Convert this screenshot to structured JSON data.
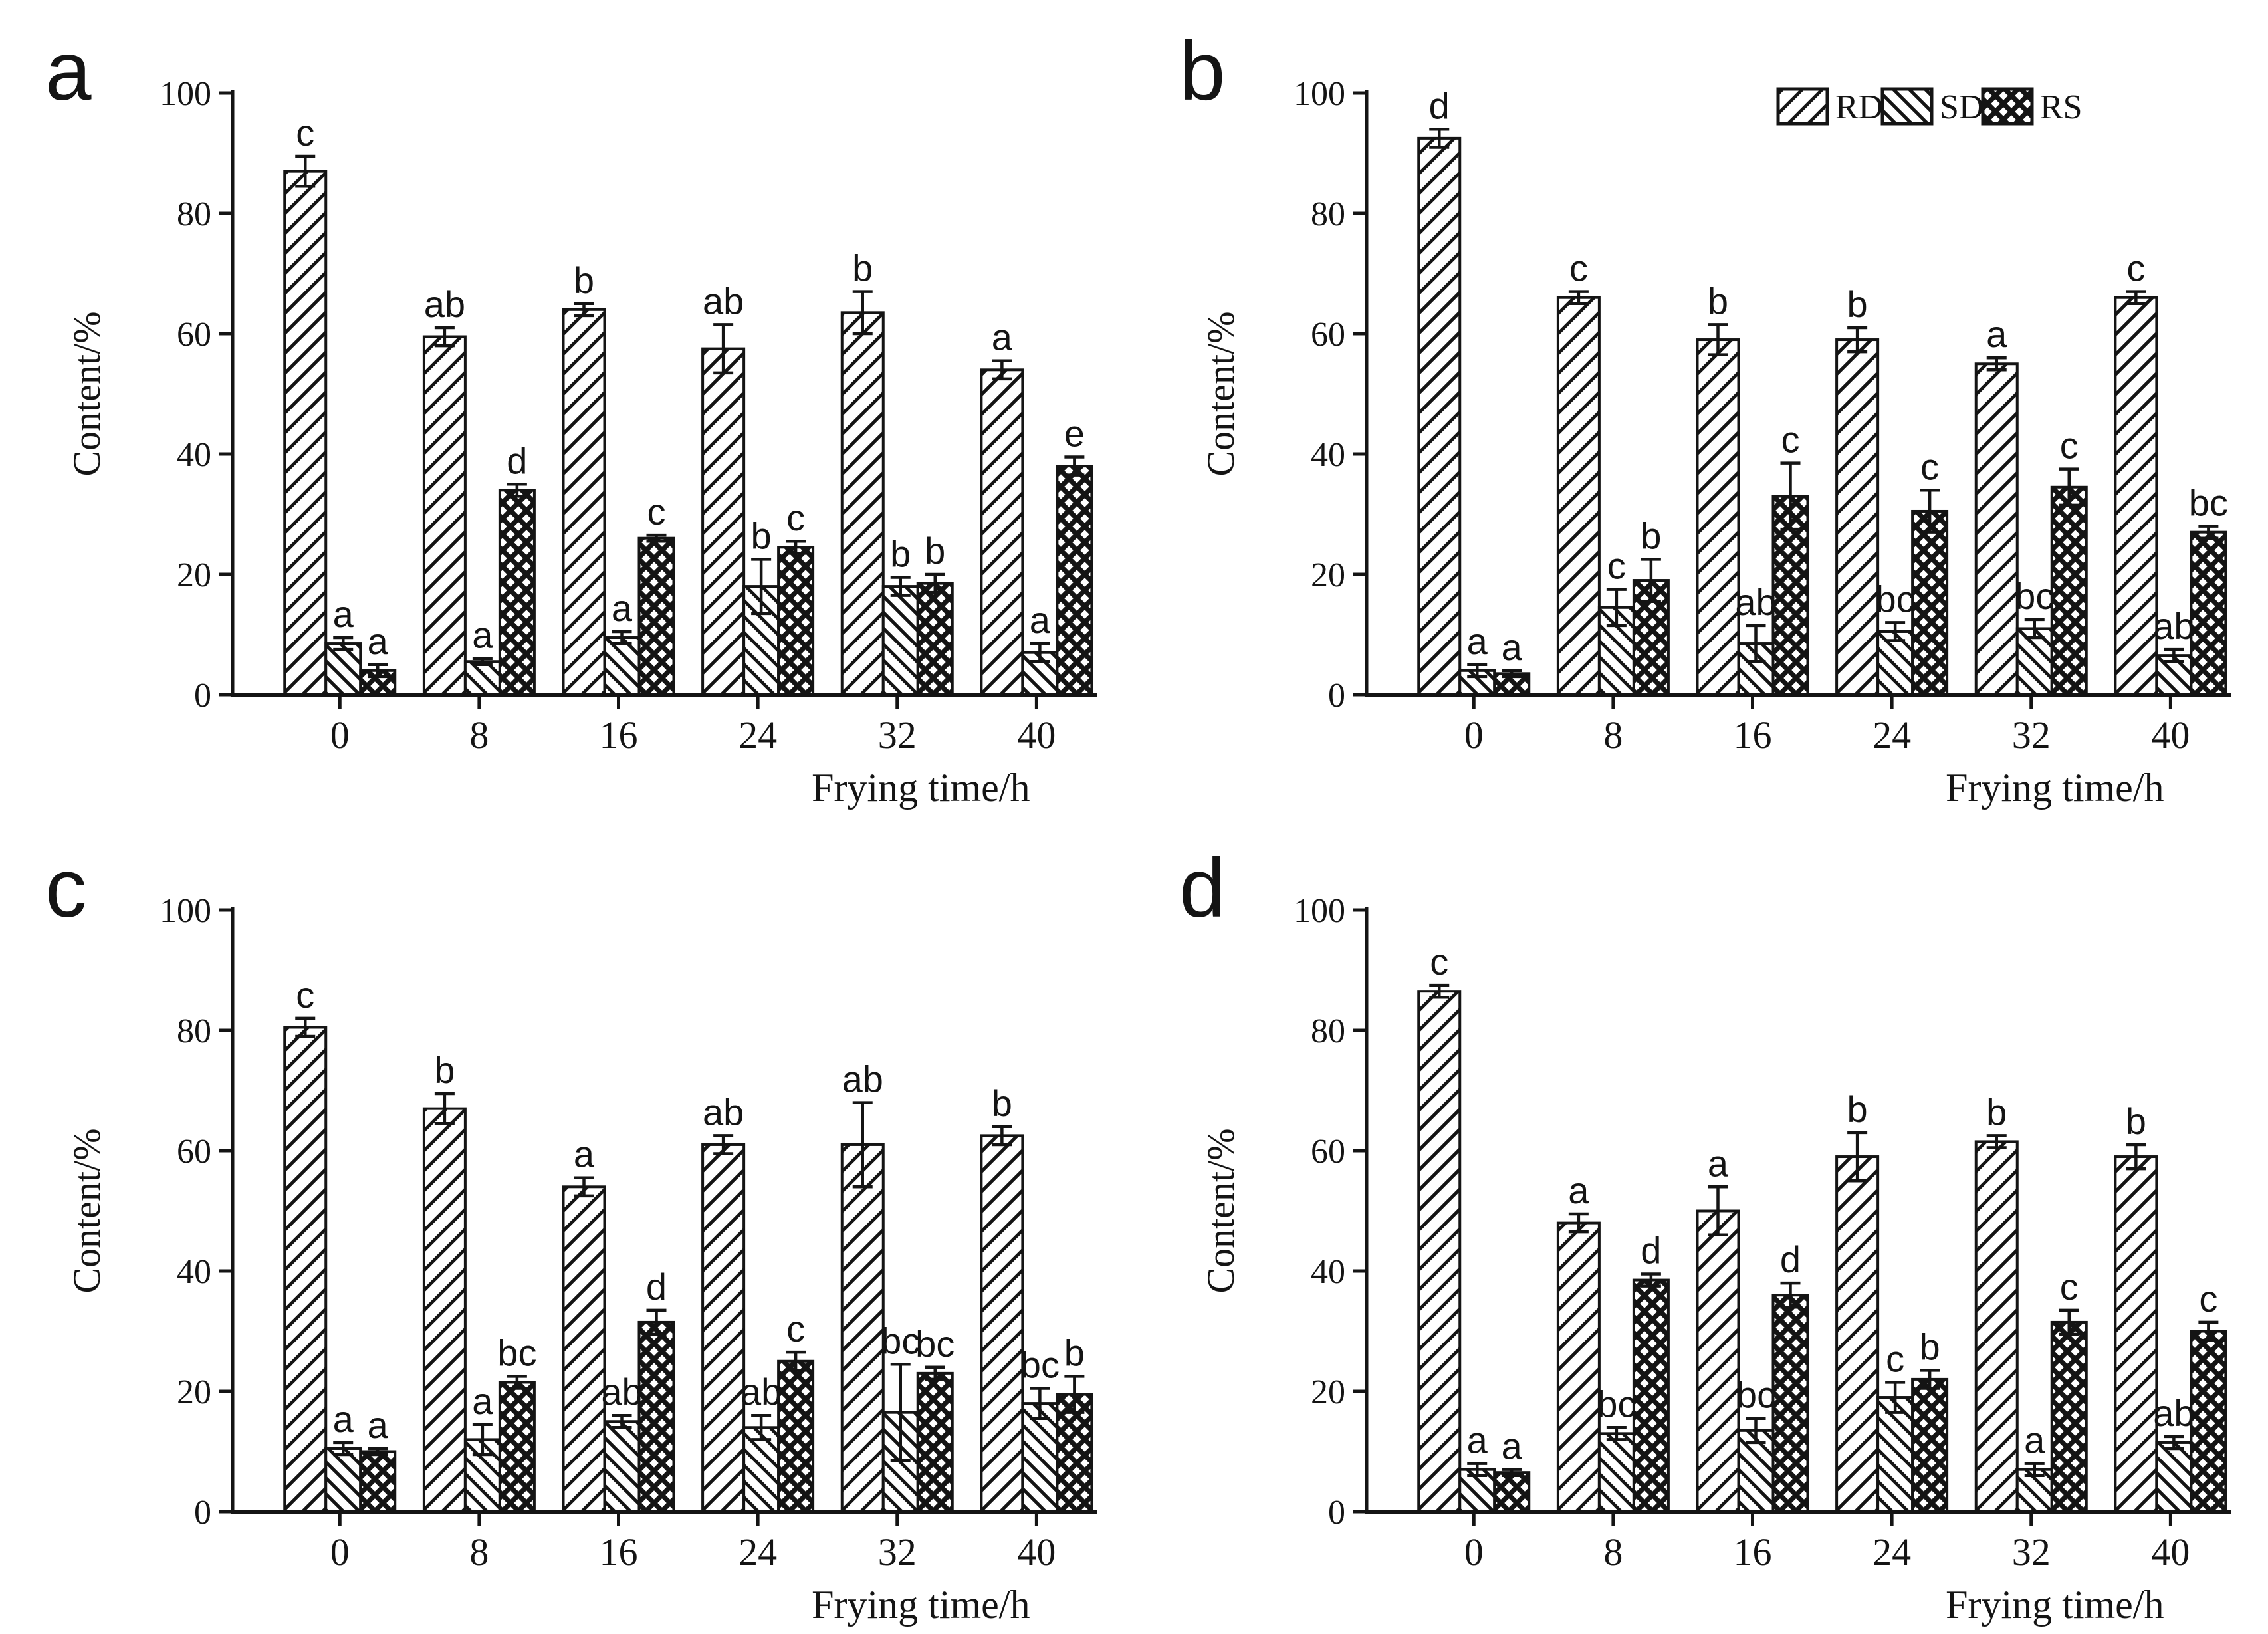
{
  "figure": {
    "background": "#ffffff",
    "ink": "#141414",
    "xlabel": "Frying time/h",
    "ylabel": "Content/%",
    "legend_labels": [
      "RDS",
      "SDS",
      "RS"
    ],
    "series_patterns": {
      "RDS": "diagonal-forward-hatch",
      "SDS": "diagonal-back-hatch",
      "RS": "diamond-crosshatch"
    }
  },
  "chart_data": [
    {
      "type": "bar",
      "panel_label": "a",
      "xlabel": "Frying time/h",
      "ylabel": "Content/%",
      "ylim": [
        0,
        100
      ],
      "yticks": [
        0,
        20,
        40,
        60,
        80,
        100
      ],
      "categories": [
        "0",
        "8",
        "16",
        "24",
        "32",
        "40"
      ],
      "show_legend": false,
      "series": [
        {
          "name": "RDS",
          "values": [
            87,
            59.5,
            64,
            57.5,
            63.5,
            54
          ],
          "errors": [
            2.5,
            1.5,
            1,
            4,
            3.5,
            1.5
          ],
          "sig_letters": [
            "c",
            "ab",
            "b",
            "ab",
            "b",
            "a"
          ]
        },
        {
          "name": "SDS",
          "values": [
            8.5,
            5.5,
            9.5,
            18,
            18,
            7
          ],
          "errors": [
            1,
            0.5,
            1,
            4.5,
            1.5,
            1.5
          ],
          "sig_letters": [
            "a",
            "a",
            "a",
            "b",
            "b",
            "a"
          ]
        },
        {
          "name": "RS",
          "values": [
            4,
            34,
            26,
            24.5,
            18.5,
            38
          ],
          "errors": [
            1,
            1,
            0.5,
            1,
            1.5,
            1.5
          ],
          "sig_letters": [
            "a",
            "d",
            "c",
            "c",
            "b",
            "e"
          ]
        }
      ]
    },
    {
      "type": "bar",
      "panel_label": "b",
      "xlabel": "Frying time/h",
      "ylabel": "Content/%",
      "ylim": [
        0,
        100
      ],
      "yticks": [
        0,
        20,
        40,
        60,
        80,
        100
      ],
      "categories": [
        "0",
        "8",
        "16",
        "24",
        "32",
        "40"
      ],
      "show_legend": true,
      "series": [
        {
          "name": "RDS",
          "values": [
            92.5,
            66,
            59,
            59,
            55,
            66
          ],
          "errors": [
            1.5,
            1,
            2.5,
            2,
            1,
            1
          ],
          "sig_letters": [
            "d",
            "c",
            "b",
            "b",
            "a",
            "c"
          ]
        },
        {
          "name": "SDS",
          "values": [
            4,
            14.5,
            8.5,
            10.5,
            11,
            6.5
          ],
          "errors": [
            1,
            3,
            3,
            1.5,
            1.5,
            1
          ],
          "sig_letters": [
            "a",
            "c",
            "ab",
            "bc",
            "bc",
            "ab"
          ]
        },
        {
          "name": "RS",
          "values": [
            3.5,
            19,
            33,
            30.5,
            34.5,
            27
          ],
          "errors": [
            0.5,
            3.5,
            5.5,
            3.5,
            3,
            1
          ],
          "sig_letters": [
            "a",
            "b",
            "c",
            "c",
            "c",
            "bc"
          ]
        }
      ]
    },
    {
      "type": "bar",
      "panel_label": "c",
      "xlabel": "Frying time/h",
      "ylabel": "Content/%",
      "ylim": [
        0,
        100
      ],
      "yticks": [
        0,
        20,
        40,
        60,
        80,
        100
      ],
      "categories": [
        "0",
        "8",
        "16",
        "24",
        "32",
        "40"
      ],
      "show_legend": false,
      "series": [
        {
          "name": "RDS",
          "values": [
            80.5,
            67,
            54,
            61,
            61,
            62.5
          ],
          "errors": [
            1.5,
            2.5,
            1.5,
            1.5,
            7,
            1.5
          ],
          "sig_letters": [
            "c",
            "b",
            "a",
            "ab",
            "ab",
            "b"
          ]
        },
        {
          "name": "SDS",
          "values": [
            10.5,
            12,
            15,
            14,
            16.5,
            18
          ],
          "errors": [
            1,
            2.5,
            1,
            2,
            8,
            2.5
          ],
          "sig_letters": [
            "a",
            "a",
            "ab",
            "ab",
            "bc",
            "bc"
          ]
        },
        {
          "name": "RS",
          "values": [
            10,
            21.5,
            31.5,
            25,
            23,
            19.5
          ],
          "errors": [
            0.5,
            1,
            2,
            1.5,
            1,
            3
          ],
          "sig_letters": [
            "a",
            "bc",
            "d",
            "c",
            "bc",
            "b"
          ]
        }
      ]
    },
    {
      "type": "bar",
      "panel_label": "d",
      "xlabel": "Frying time/h",
      "ylabel": "Content/%",
      "ylim": [
        0,
        100
      ],
      "yticks": [
        0,
        20,
        40,
        60,
        80,
        100
      ],
      "categories": [
        "0",
        "8",
        "16",
        "24",
        "32",
        "40"
      ],
      "show_legend": false,
      "series": [
        {
          "name": "RDS",
          "values": [
            86.5,
            48,
            50,
            59,
            61.5,
            59
          ],
          "errors": [
            1,
            1.5,
            4,
            4,
            1,
            2
          ],
          "sig_letters": [
            "c",
            "a",
            "a",
            "b",
            "b",
            "b"
          ]
        },
        {
          "name": "SDS",
          "values": [
            7,
            13,
            13.5,
            19,
            7,
            11.5
          ],
          "errors": [
            1,
            1,
            2,
            2.5,
            1,
            1
          ],
          "sig_letters": [
            "a",
            "bc",
            "bc",
            "c",
            "a",
            "ab"
          ]
        },
        {
          "name": "RS",
          "values": [
            6.5,
            38.5,
            36,
            22,
            31.5,
            30
          ],
          "errors": [
            0.5,
            1,
            2,
            1.5,
            2,
            1.5
          ],
          "sig_letters": [
            "a",
            "d",
            "d",
            "b",
            "c",
            "c"
          ]
        }
      ]
    }
  ]
}
